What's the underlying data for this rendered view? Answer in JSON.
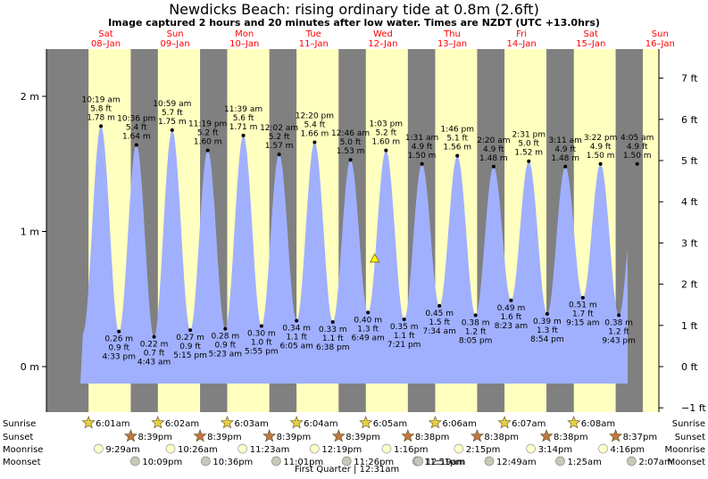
{
  "title": "Newdicks Beach: rising  ordinary tide at 0.8m (2.6ft)",
  "subtitle": "Image captured 2 hours and 20 minutes after low water. Times are NZDT (UTC +13.0hrs)",
  "colors": {
    "night": "#808080",
    "day": "#ffffc0",
    "water": "#a0b0ff",
    "day_label": "#ff0000",
    "current_marker": "#ffff00"
  },
  "chart_data": {
    "type": "area",
    "title": "Newdicks Beach: rising  ordinary tide at 0.8m (2.6ft)",
    "ylabel_left": "m",
    "ylabel_right": "ft",
    "ylim_m": [
      -0.45,
      2.3
    ],
    "yticks_m": [
      "0 m",
      "1 m",
      "2 m"
    ],
    "yticks_ft": [
      "−1 ft",
      "0 ft",
      "1 ft",
      "2 ft",
      "3 ft",
      "4 ft",
      "5 ft",
      "6 ft",
      "7 ft"
    ],
    "x_start_day_offset": -0.37,
    "x_end_day_offset": 9.1,
    "days": [
      {
        "dow": "Sat",
        "date": "08–Jan"
      },
      {
        "dow": "Sun",
        "date": "09–Jan"
      },
      {
        "dow": "Mon",
        "date": "10–Jan"
      },
      {
        "dow": "Tue",
        "date": "11–Jan"
      },
      {
        "dow": "Wed",
        "date": "12–Jan"
      },
      {
        "dow": "Thu",
        "date": "13–Jan"
      },
      {
        "dow": "Fri",
        "date": "14–Jan"
      },
      {
        "dow": "Sat",
        "date": "15–Jan"
      },
      {
        "dow": "Sun",
        "date": "16–Jan"
      }
    ],
    "tides": [
      {
        "type": "high",
        "day": 0,
        "time": "10:19 am",
        "ft": "5.8 ft",
        "m": "1.78 m",
        "value": 1.78
      },
      {
        "type": "low",
        "day": 0,
        "time": "4:33 pm",
        "ft": "0.9 ft",
        "m": "0.26 m",
        "value": 0.26
      },
      {
        "type": "high",
        "day": 0,
        "time": "10:36 pm",
        "ft": "5.4 ft",
        "m": "1.64 m",
        "value": 1.64
      },
      {
        "type": "low",
        "day": 1,
        "time": "4:43 am",
        "ft": "0.7 ft",
        "m": "0.22 m",
        "value": 0.22
      },
      {
        "type": "high",
        "day": 1,
        "time": "10:59 am",
        "ft": "5.7 ft",
        "m": "1.75 m",
        "value": 1.75
      },
      {
        "type": "low",
        "day": 1,
        "time": "5:15 pm",
        "ft": "0.9 ft",
        "m": "0.27 m",
        "value": 0.27
      },
      {
        "type": "high",
        "day": 1,
        "time": "11:19 pm",
        "ft": "5.2 ft",
        "m": "1.60 m",
        "value": 1.6
      },
      {
        "type": "low",
        "day": 2,
        "time": "5:23 am",
        "ft": "0.9 ft",
        "m": "0.28 m",
        "value": 0.28
      },
      {
        "type": "high",
        "day": 2,
        "time": "11:39 am",
        "ft": "5.6 ft",
        "m": "1.71 m",
        "value": 1.71
      },
      {
        "type": "low",
        "day": 2,
        "time": "5:55 pm",
        "ft": "1.0 ft",
        "m": "0.30 m",
        "value": 0.3
      },
      {
        "type": "high",
        "day": 3,
        "time": "12:02 am",
        "ft": "5.2 ft",
        "m": "1.57 m",
        "value": 1.57
      },
      {
        "type": "low",
        "day": 3,
        "time": "6:05 am",
        "ft": "1.1 ft",
        "m": "0.34 m",
        "value": 0.34
      },
      {
        "type": "high",
        "day": 3,
        "time": "12:20 pm",
        "ft": "5.4 ft",
        "m": "1.66 m",
        "value": 1.66
      },
      {
        "type": "low",
        "day": 3,
        "time": "6:38 pm",
        "ft": "1.1 ft",
        "m": "0.33 m",
        "value": 0.33
      },
      {
        "type": "high",
        "day": 4,
        "time": "12:46 am",
        "ft": "5.0 ft",
        "m": "1.53 m",
        "value": 1.53
      },
      {
        "type": "low",
        "day": 4,
        "time": "6:49 am",
        "ft": "1.3 ft",
        "m": "0.40 m",
        "value": 0.4
      },
      {
        "type": "high",
        "day": 4,
        "time": "1:03 pm",
        "ft": "5.2 ft",
        "m": "1.60 m",
        "value": 1.6
      },
      {
        "type": "low",
        "day": 4,
        "time": "7:21 pm",
        "ft": "1.1 ft",
        "m": "0.35 m",
        "value": 0.35
      },
      {
        "type": "high",
        "day": 5,
        "time": "1:31 am",
        "ft": "4.9 ft",
        "m": "1.50 m",
        "value": 1.5
      },
      {
        "type": "low",
        "day": 5,
        "time": "7:34 am",
        "ft": "1.5 ft",
        "m": "0.45 m",
        "value": 0.45
      },
      {
        "type": "high",
        "day": 5,
        "time": "1:46 pm",
        "ft": "5.1 ft",
        "m": "1.56 m",
        "value": 1.56
      },
      {
        "type": "low",
        "day": 5,
        "time": "8:05 pm",
        "ft": "1.2 ft",
        "m": "0.38 m",
        "value": 0.38
      },
      {
        "type": "high",
        "day": 6,
        "time": "2:20 am",
        "ft": "4.9 ft",
        "m": "1.48 m",
        "value": 1.48
      },
      {
        "type": "low",
        "day": 6,
        "time": "8:23 am",
        "ft": "1.6 ft",
        "m": "0.49 m",
        "value": 0.49
      },
      {
        "type": "high",
        "day": 6,
        "time": "2:31 pm",
        "ft": "5.0 ft",
        "m": "1.52 m",
        "value": 1.52
      },
      {
        "type": "low",
        "day": 6,
        "time": "8:54 pm",
        "ft": "1.3 ft",
        "m": "0.39 m",
        "value": 0.39
      },
      {
        "type": "high",
        "day": 7,
        "time": "3:11 am",
        "ft": "4.9 ft",
        "m": "1.48 m",
        "value": 1.48
      },
      {
        "type": "low",
        "day": 7,
        "time": "9:15 am",
        "ft": "1.7 ft",
        "m": "0.51 m",
        "value": 0.51
      },
      {
        "type": "high",
        "day": 7,
        "time": "3:22 pm",
        "ft": "4.9 ft",
        "m": "1.50 m",
        "value": 1.5
      },
      {
        "type": "low",
        "day": 7,
        "time": "9:43 pm",
        "ft": "1.2 ft",
        "m": "0.38 m",
        "value": 0.38
      },
      {
        "type": "high",
        "day": 8,
        "time": "4:05 am",
        "ft": "4.9 ft",
        "m": "1.50 m",
        "value": 1.5
      }
    ],
    "current": {
      "day": 4,
      "time": "9:09 am",
      "value": 0.8
    },
    "sunrise": [
      "6:01am",
      "6:02am",
      "6:03am",
      "6:04am",
      "6:05am",
      "6:06am",
      "6:07am",
      "6:08am"
    ],
    "sunset": [
      "8:39pm",
      "8:39pm",
      "8:39pm",
      "8:39pm",
      "8:38pm",
      "8:38pm",
      "8:38pm",
      "8:37pm"
    ],
    "moonrise": [
      {
        "day": 0,
        "time": "9:29am"
      },
      {
        "day": 1,
        "time": "10:26am"
      },
      {
        "day": 2,
        "time": "11:23am"
      },
      {
        "day": 3,
        "time": "12:19pm"
      },
      {
        "day": 4,
        "time": "1:16pm"
      },
      {
        "day": 5,
        "time": "2:15pm"
      },
      {
        "day": 6,
        "time": "3:14pm"
      },
      {
        "day": 7,
        "time": "4:16pm"
      }
    ],
    "moonset": [
      {
        "day": 0,
        "time": "10:09pm"
      },
      {
        "day": 1,
        "time": "10:36pm"
      },
      {
        "day": 2,
        "time": "11:01pm"
      },
      {
        "day": 3,
        "time": "11:26pm"
      },
      {
        "day": 4,
        "time": "11:51pm"
      },
      {
        "day": 5,
        "time": "12:19am"
      },
      {
        "day": 6,
        "time": "12:49am"
      },
      {
        "day": 7,
        "time": "1:25am"
      },
      {
        "day": 8,
        "time": "2:07am"
      }
    ]
  },
  "astro_labels": {
    "sunrise": "Sunrise",
    "sunset": "Sunset",
    "moonrise": "Moonrise",
    "moonset": "Moonset"
  },
  "footnote": "First Quarter | 12:31am"
}
